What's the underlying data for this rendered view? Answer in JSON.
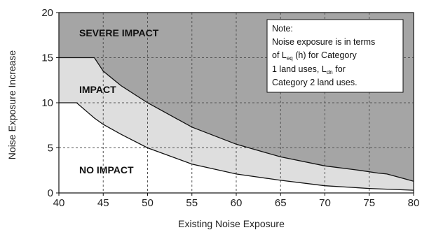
{
  "chart_data": {
    "type": "area",
    "xlabel": "Existing Noise Exposure",
    "ylabel": "Noise Exposure Increase",
    "xlim": [
      40,
      80
    ],
    "ylim": [
      0,
      20
    ],
    "x_ticks": [
      "40",
      "45",
      "50",
      "55",
      "60",
      "65",
      "70",
      "75",
      "80"
    ],
    "y_ticks": [
      "0",
      "5",
      "10",
      "15",
      "20"
    ],
    "grid": true,
    "colors": {
      "severe": "#a5a5a5",
      "impact": "#dedede",
      "no_impact": "#ffffff",
      "grid": "#555555",
      "line": "#111111"
    },
    "regions": {
      "severe": "SEVERE IMPACT",
      "impact": "IMPACT",
      "no_impact": "NO IMPACT"
    },
    "series": [
      {
        "x": [
          40,
          44,
          45,
          47,
          50,
          55,
          60,
          65,
          70,
          74,
          76,
          77,
          80
        ],
        "values": [
          15,
          15,
          13.5,
          11.9,
          10.0,
          7.3,
          5.4,
          4.0,
          3.0,
          2.5,
          2.2,
          2.1,
          1.3
        ]
      },
      {
        "x": [
          40,
          42,
          44,
          45,
          47,
          50,
          55,
          60,
          65,
          70,
          75,
          80
        ],
        "values": [
          10,
          10,
          8.3,
          7.6,
          6.5,
          5.0,
          3.2,
          2.1,
          1.4,
          0.8,
          0.5,
          0.3
        ]
      }
    ],
    "annotation": {
      "line1": "Note:",
      "line2": "Noise exposure is in terms",
      "line3_pre": "of L",
      "line3_sub": "eq",
      "line3_post": " (h) for Category",
      "line4_pre": "1 land uses, L",
      "line4_sub": "dn",
      "line4_post": " for",
      "line5": "Category 2 land uses."
    }
  }
}
